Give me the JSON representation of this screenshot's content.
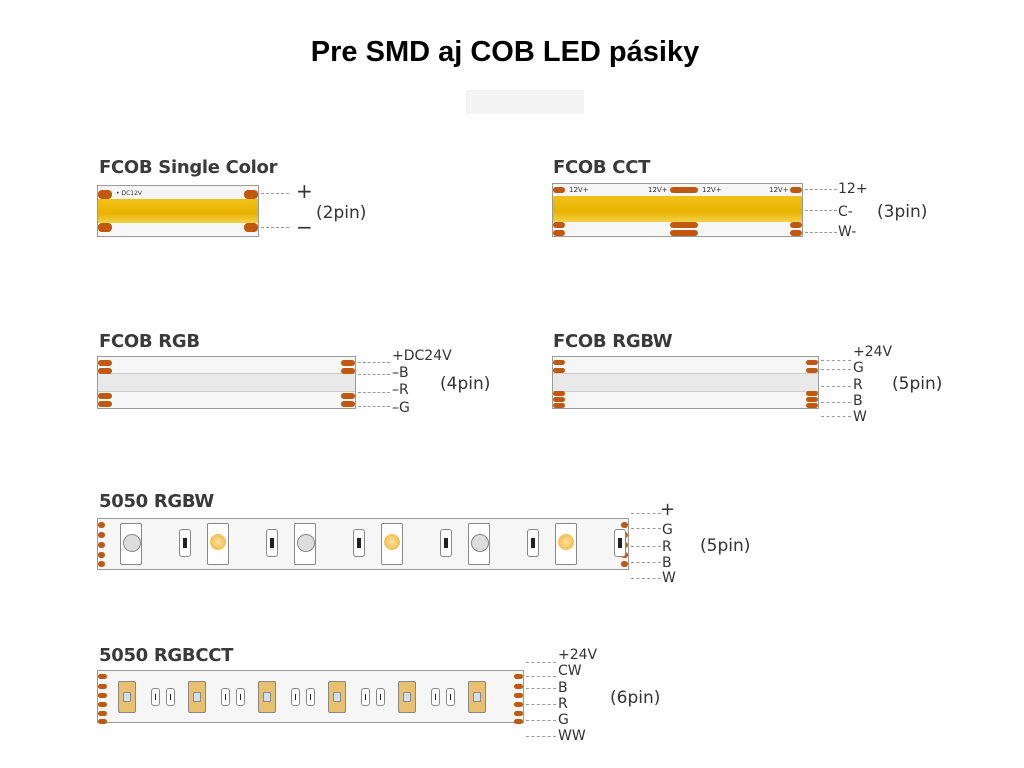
{
  "title": "Pre SMD aj COB LED pásiky",
  "strips": [
    {
      "label": "FCOB Single Color",
      "pins": [
        "+",
        "−"
      ],
      "pin_count": "(2pin)",
      "type": "cob-single",
      "marking": "• DC12V"
    },
    {
      "label": "FCOB CCT",
      "pins": [
        "12+",
        "C-",
        "W-"
      ],
      "pin_count": "(3pin)",
      "type": "cob-cct",
      "marking": "12V+"
    },
    {
      "label": "FCOB RGB",
      "pins": [
        "+DC24V",
        "–B",
        "–R",
        "–G"
      ],
      "pin_count": "(4pin)",
      "type": "cob-rgb"
    },
    {
      "label": "FCOB RGBW",
      "pins": [
        "+24V",
        "G",
        "R",
        "B",
        "W"
      ],
      "pin_count": "(5pin)",
      "type": "cob-rgbw"
    },
    {
      "label": "5050 RGBW",
      "pins": [
        "+",
        "G",
        "R",
        "B",
        "W"
      ],
      "pin_count": "(5pin)",
      "type": "smd-rgbw"
    },
    {
      "label": "5050 RGBCCT",
      "pins": [
        "+24V",
        "CW",
        "B",
        "R",
        "G",
        "WW"
      ],
      "pin_count": "(6pin)",
      "type": "smd-rgbcct"
    }
  ],
  "colors": {
    "pad": "#c0580f",
    "cob_yellow": "#f0bc10"
  }
}
